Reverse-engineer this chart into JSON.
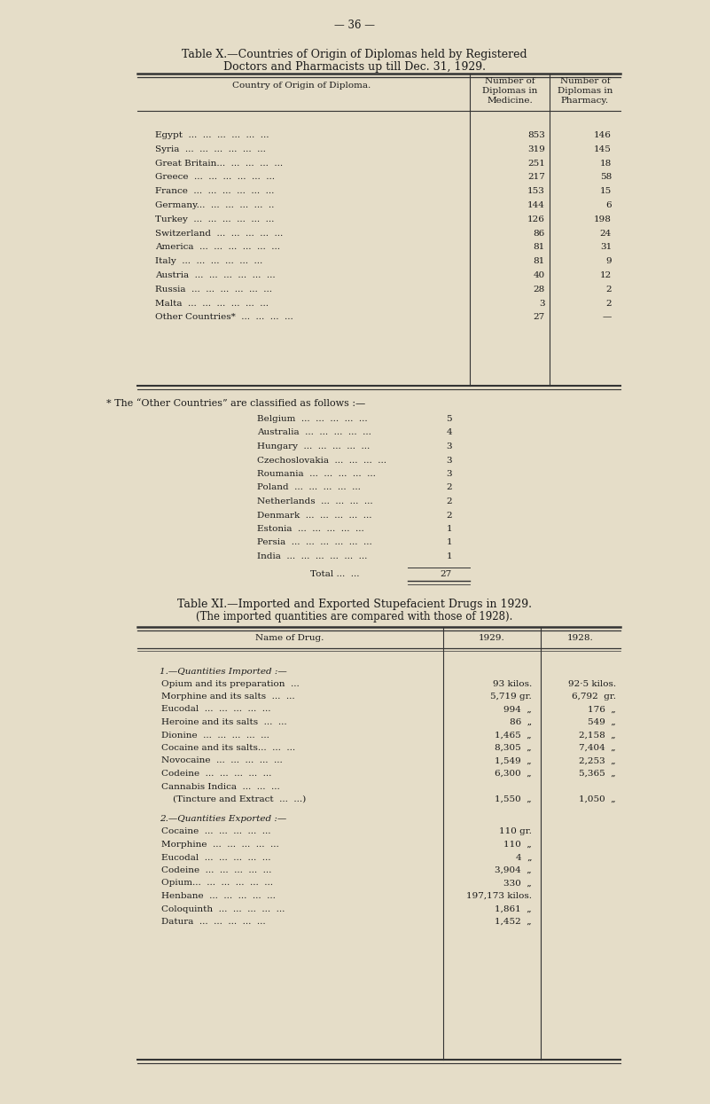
{
  "bg_color": "#e5ddc8",
  "page_number": "— 36 —",
  "table_x_title_line1": "Table X.—Countries of Origin of Diplomas held by Registered",
  "table_x_title_line2": "Doctors and Pharmacists up till Dec. 31, 1929.",
  "table_x_rows": [
    [
      "Egypt  ...  ...  ...  ...  ...  ...",
      "853",
      "146"
    ],
    [
      "Syria  ...  ...  ...  ...  ...  ...",
      "319",
      "145"
    ],
    [
      "Great Britain...  ...  ...  ...  ...",
      "251",
      "18"
    ],
    [
      "Greece  ...  ...  ...  ...  ...  ...",
      "217",
      "58"
    ],
    [
      "France  ...  ...  ...  ...  ...  ...",
      "153",
      "15"
    ],
    [
      "Germany...  ...  ...  ...  ...  ..",
      "144",
      "6"
    ],
    [
      "Turkey  ...  ...  ...  ...  ...  ...",
      "126",
      "198"
    ],
    [
      "Switzerland  ...  ...  ...  ...  ...",
      "86",
      "24"
    ],
    [
      "America  ...  ...  ...  ...  ...  ...",
      "81",
      "31"
    ],
    [
      "Italy  ...  ...  ...  ...  ...  ...",
      "81",
      "9"
    ],
    [
      "Austria  ...  ...  ...  ...  ...  ...",
      "40",
      "12"
    ],
    [
      "Russia  ...  ...  ...  ...  ...  ...",
      "28",
      "2"
    ],
    [
      "Malta  ...  ...  ...  ...  ...  ...",
      "3",
      "2"
    ],
    [
      "Other Countries*  ...  ...  ...  ...",
      "27",
      "—"
    ]
  ],
  "other_countries_note": "* The “Other Countries” are classified as follows :—",
  "other_countries": [
    [
      "Belgium  ...  ...  ...  ...  ...",
      "5"
    ],
    [
      "Australia  ...  ...  ...  ...  ...",
      "4"
    ],
    [
      "Hungary  ...  ...  ...  ...  ...",
      "3"
    ],
    [
      "Czechoslovakia  ...  ...  ...  ...",
      "3"
    ],
    [
      "Roumania  ...  ...  ...  ...  ...",
      "3"
    ],
    [
      "Poland  ...  ...  ...  ...  ...",
      "2"
    ],
    [
      "Netherlands  ...  ...  ...  ...",
      "2"
    ],
    [
      "Denmark  ...  ...  ...  ...  ...",
      "2"
    ],
    [
      "Estonia  ...  ...  ...  ...  ...",
      "1"
    ],
    [
      "Persia  ...  ...  ...  ...  ...  ...",
      "1"
    ],
    [
      "India  ...  ...  ...  ...  ...  ...",
      "1"
    ]
  ],
  "other_total_label": "Total ...  ...  ",
  "other_total_value": "27",
  "table_xi_title_line1": "Table XI.—Imported and Exported Stupefacient Drugs in 1929.",
  "table_xi_title_line2": "(The imported quantities are compared with those of 1928).",
  "table_xi_section1_header": "1.—Quantities Imported :—",
  "table_xi_imported": [
    [
      "Opium and its preparation  ...",
      "93 kilos.",
      "92·5 kilos."
    ],
    [
      "Morphine and its salts  ...  ...",
      "5,719 gr.",
      "6,792  gr."
    ],
    [
      "Eucodal  ...  ...  ...  ...  ...",
      "994  „",
      "176  „"
    ],
    [
      "Heroine and its salts  ...  ...",
      "86  „",
      "549  „"
    ],
    [
      "Dionine  ...  ...  ...  ...  ...",
      "1,465  „",
      "2,158  „"
    ],
    [
      "Cocaine and its salts...  ...  ...",
      "8,305  „",
      "7,404  „"
    ],
    [
      "Novocaine  ...  ...  ...  ...  ...",
      "1,549  „",
      "2,253  „"
    ],
    [
      "Codeine  ...  ...  ...  ...  ...",
      "6,300  „",
      "5,365  „"
    ],
    [
      "Cannabis Indica  ...  ...  ...",
      "",
      ""
    ],
    [
      "(Tincture and Extract  ...  ...)",
      "1,550  „",
      "1,050  „"
    ]
  ],
  "table_xi_section2_header": "2.—Quantities Exported :—",
  "table_xi_exported": [
    [
      "Cocaine  ...  ...  ...  ...  ...",
      "110 gr.",
      ""
    ],
    [
      "Morphine  ...  ...  ...  ...  ...",
      "110  „",
      ""
    ],
    [
      "Eucodal  ...  ...  ...  ...  ...",
      "4  „",
      ""
    ],
    [
      "Codeine  ...  ...  ...  ...  ...",
      "3,904  „",
      ""
    ],
    [
      "Opium...  ...  ...  ...  ...  ...",
      "330  „",
      ""
    ],
    [
      "Henbane  ...  ...  ...  ...  ...",
      "197,173 kilos.",
      ""
    ],
    [
      "Coloquinth  ...  ...  ...  ...  ...",
      "1,861  „",
      ""
    ],
    [
      "Datura  ...  ...  ...  ...  ...",
      "1,452  „",
      ""
    ]
  ]
}
